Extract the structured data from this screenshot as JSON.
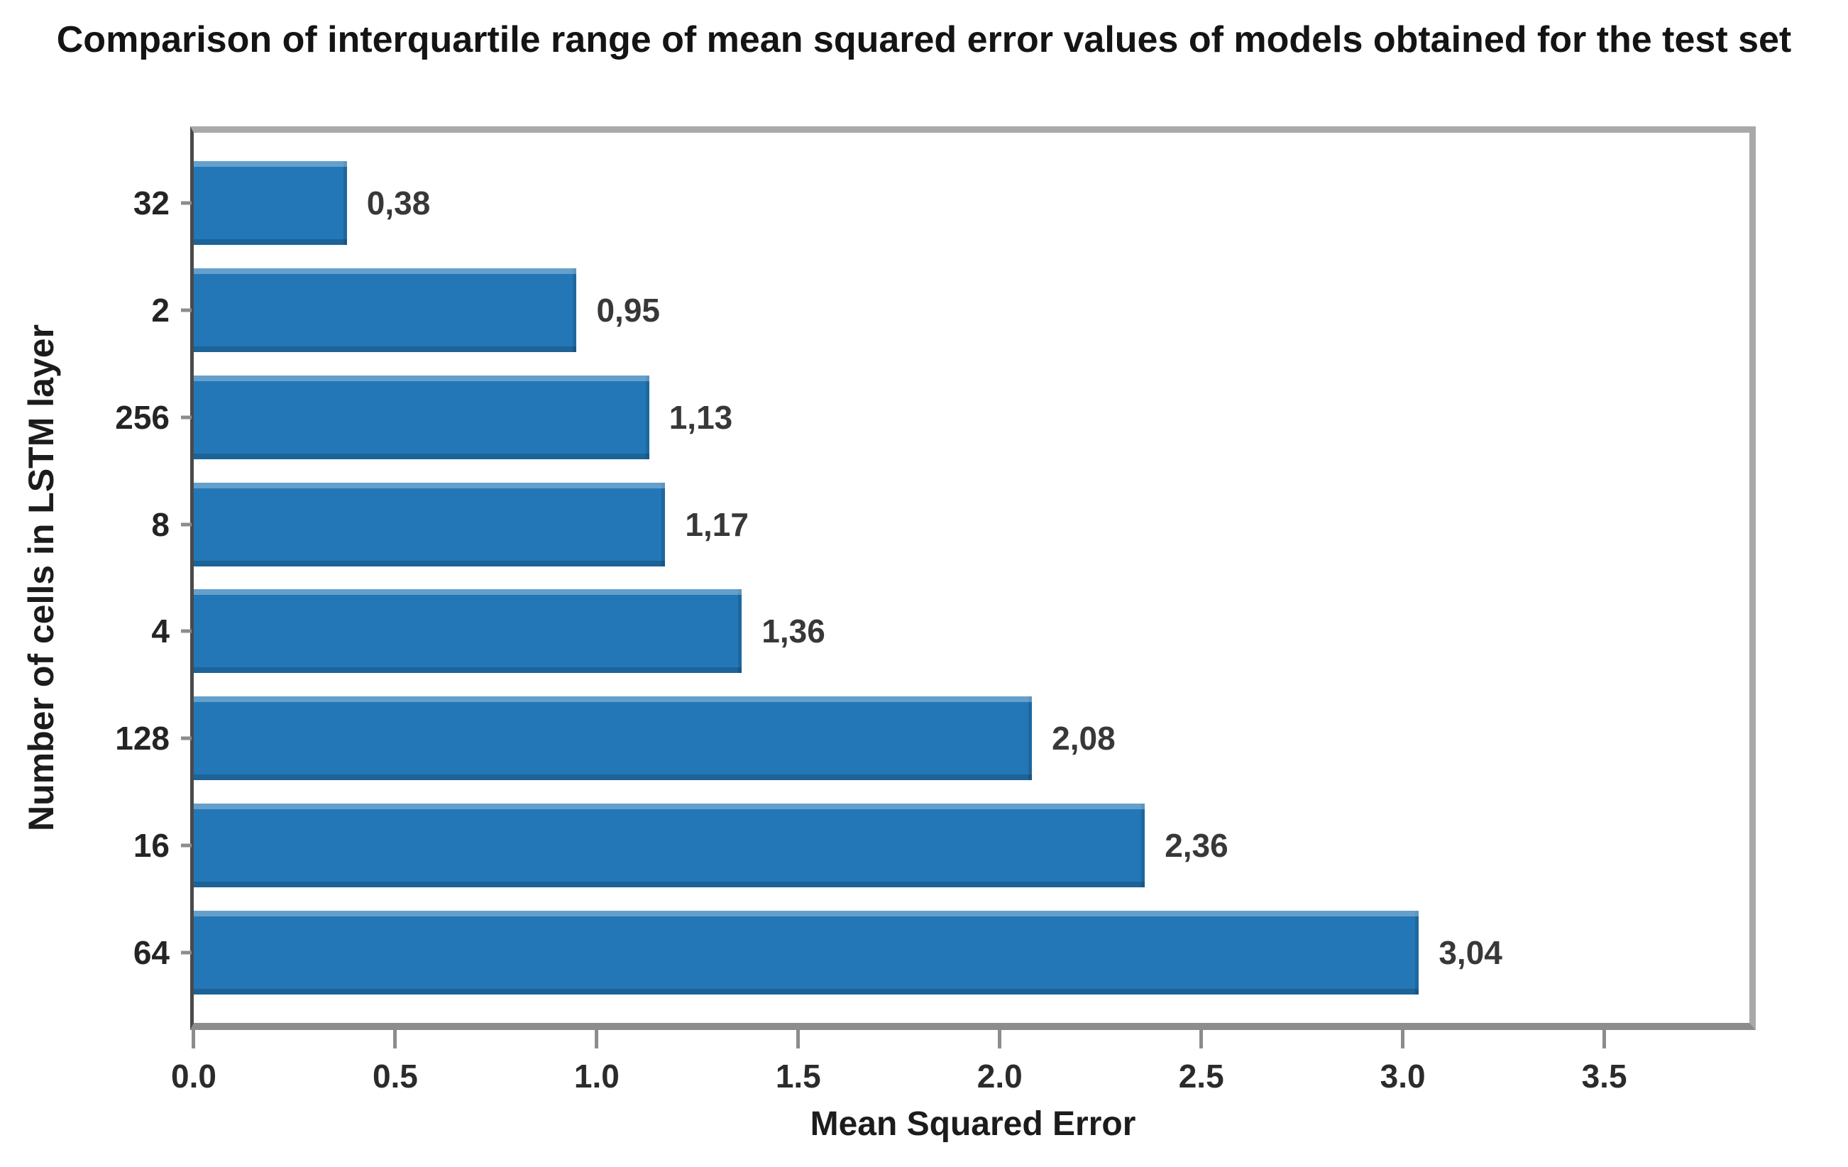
{
  "chart_data": {
    "type": "bar",
    "orientation": "horizontal",
    "title": "Comparison of interquartile range of mean squared error values of models obtained for the test set",
    "xlabel": "Mean Squared Error",
    "ylabel": "Number of cells in LSTM layer",
    "categories": [
      "32",
      "2",
      "256",
      "8",
      "4",
      "128",
      "16",
      "64"
    ],
    "values": [
      0.38,
      0.95,
      1.13,
      1.17,
      1.36,
      2.08,
      2.36,
      3.04
    ],
    "value_labels": [
      "0,38",
      "0,95",
      "1,13",
      "1,17",
      "1,36",
      "2,08",
      "2,36",
      "3,04"
    ],
    "xticks": [
      0.0,
      0.5,
      1.0,
      1.5,
      2.0,
      2.5,
      3.0,
      3.5
    ],
    "xtick_labels": [
      "0.0",
      "0.5",
      "1.0",
      "1.5",
      "2.0",
      "2.5",
      "3.0",
      "3.5"
    ],
    "xlim": [
      0,
      3.86
    ],
    "grid": false,
    "legend_position": "none",
    "colors": {
      "bar": "#2377b6",
      "frame": "#a9a9a9",
      "left_spine": "#4a4a4a",
      "bottom_spine": "#8c8c8c",
      "tick": "#8c8c8c",
      "text": "#1f1f1f"
    }
  }
}
